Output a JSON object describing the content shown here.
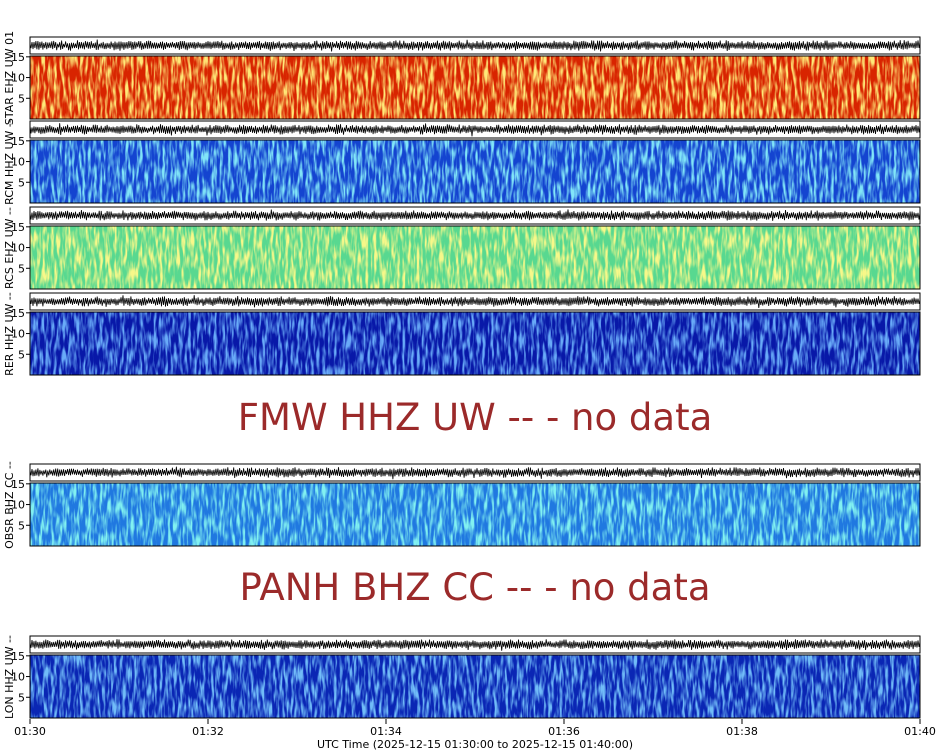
{
  "chart_data": {
    "type": "spectrogram",
    "xlabel": "UTC Time (2025-12-15 01:30:00 to 2025-12-15 01:40:00)",
    "xlim": [
      0,
      10
    ],
    "xticks": [
      {
        "value": 0,
        "label": "01:30"
      },
      {
        "value": 2,
        "label": "01:32"
      },
      {
        "value": 4,
        "label": "01:34"
      },
      {
        "value": 6,
        "label": "01:36"
      },
      {
        "value": 8,
        "label": "01:38"
      },
      {
        "value": 10,
        "label": "01:40"
      }
    ],
    "panels": [
      {
        "label": "STAR EHZ UW 01",
        "ylim": [
          0,
          15.2
        ],
        "yticks": [
          5,
          10,
          15
        ],
        "colors": [
          "#d82400",
          "#ffd030"
        ]
      },
      {
        "label": "RCM HHZ UW --",
        "ylim": [
          0,
          15.2
        ],
        "yticks": [
          5,
          10,
          15
        ],
        "colors": [
          "#1444d0",
          "#38c8f0"
        ]
      },
      {
        "label": "RCS EHZ UW --",
        "ylim": [
          0,
          15.2
        ],
        "yticks": [
          5,
          10,
          15
        ],
        "colors": [
          "#58d890",
          "#eef040"
        ]
      },
      {
        "label": "RER HHZ UW --",
        "ylim": [
          0,
          15.2
        ],
        "yticks": [
          5,
          10,
          15
        ],
        "colors": [
          "#0818a8",
          "#2468f0"
        ]
      },
      {
        "message": "FMW HHZ UW -- - no data"
      },
      {
        "label": "OBSR BHZ CC --",
        "ylim": [
          0,
          15.2
        ],
        "yticks": [
          5,
          10,
          15
        ],
        "colors": [
          "#2078e0",
          "#38e0e0"
        ]
      },
      {
        "message": "PANH BHZ CC -- - no data"
      },
      {
        "label": "LON HHZ UW --",
        "ylim": [
          0,
          15.2
        ],
        "yticks": [
          5,
          10,
          15
        ],
        "colors": [
          "#0a26b4",
          "#2a80f0"
        ]
      }
    ]
  }
}
